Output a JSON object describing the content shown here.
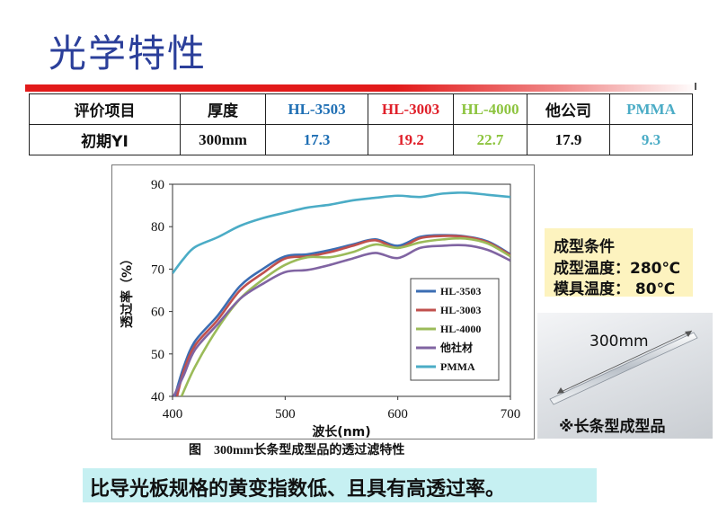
{
  "slide": {
    "title": "光学特性",
    "caption": "图　300mm长条型成型品的透过滤特性",
    "bottom_note": "比导光板规格的黄变指数低、且具有高透过率。"
  },
  "table": {
    "header": [
      "评价项目",
      "厚度",
      "HL-3503",
      "HL-3003",
      "HL-4000",
      "他公司",
      "PMMA"
    ],
    "row": [
      "初期YI",
      "300mm",
      "17.3",
      "19.2",
      "22.7",
      "17.9",
      "9.3"
    ],
    "colors": [
      "#111111",
      "#111111",
      "#1f6fb4",
      "#e0202a",
      "#8dc43f",
      "#111111",
      "#4bacc6"
    ]
  },
  "conditions": {
    "title": "成型条件",
    "lines": [
      "成型温度：280℃",
      "模具温度：  80℃"
    ]
  },
  "photo": {
    "length_label": "300mm",
    "note": "※长条型成型品"
  },
  "chart_data": {
    "type": "line",
    "xlabel": "波长(nm)",
    "ylabel": "透过率（%）",
    "xlim": [
      400,
      700
    ],
    "ylim": [
      40,
      90
    ],
    "xticks": [
      400,
      500,
      600,
      700
    ],
    "yticks": [
      40,
      50,
      60,
      70,
      80,
      90
    ],
    "grid": false,
    "legend": "inside-bottom-right",
    "series": [
      {
        "name": "HL-3503",
        "color": "#3b6db3",
        "x": [
          402,
          410,
          420,
          440,
          460,
          480,
          500,
          520,
          540,
          560,
          580,
          600,
          620,
          640,
          660,
          680,
          700
        ],
        "y": [
          40,
          47,
          53,
          59,
          66,
          70,
          73,
          73.5,
          74.5,
          75.8,
          77,
          75.5,
          77.6,
          78,
          77.7,
          76.5,
          73.5
        ]
      },
      {
        "name": "HL-3003",
        "color": "#c0504d",
        "x": [
          404,
          410,
          420,
          440,
          460,
          480,
          500,
          520,
          540,
          560,
          580,
          600,
          620,
          640,
          660,
          680,
          700
        ],
        "y": [
          40,
          46,
          52,
          58,
          65,
          69,
          72.5,
          73,
          74,
          75.5,
          76.8,
          75,
          77.3,
          77.8,
          77.6,
          76.3,
          73.3
        ]
      },
      {
        "name": "HL-4000",
        "color": "#9bbb59",
        "x": [
          408,
          420,
          440,
          460,
          480,
          500,
          520,
          540,
          560,
          580,
          600,
          620,
          640,
          660,
          680,
          700
        ],
        "y": [
          40,
          47,
          56,
          63,
          67.5,
          71,
          72.8,
          72.8,
          74,
          75.8,
          75,
          76.3,
          77,
          77.2,
          76,
          73
        ]
      },
      {
        "name": "他社材",
        "color": "#8064a2",
        "x": [
          401,
          410,
          420,
          440,
          460,
          480,
          500,
          520,
          540,
          560,
          580,
          600,
          620,
          640,
          660,
          680,
          700
        ],
        "y": [
          40,
          45,
          51,
          57,
          63,
          66.5,
          69.3,
          69.8,
          71,
          72.5,
          73.8,
          72.6,
          75,
          75.5,
          75.6,
          74.5,
          72
        ]
      },
      {
        "name": "PMMA",
        "color": "#4bacc6",
        "x": [
          400,
          410,
          420,
          440,
          460,
          480,
          500,
          520,
          540,
          560,
          580,
          600,
          620,
          640,
          660,
          680,
          700
        ],
        "y": [
          69,
          72.5,
          75.2,
          77.5,
          80.2,
          82,
          83.3,
          84.5,
          85.2,
          86.2,
          86.8,
          87.3,
          87,
          87.8,
          88,
          87.5,
          87
        ]
      }
    ]
  }
}
